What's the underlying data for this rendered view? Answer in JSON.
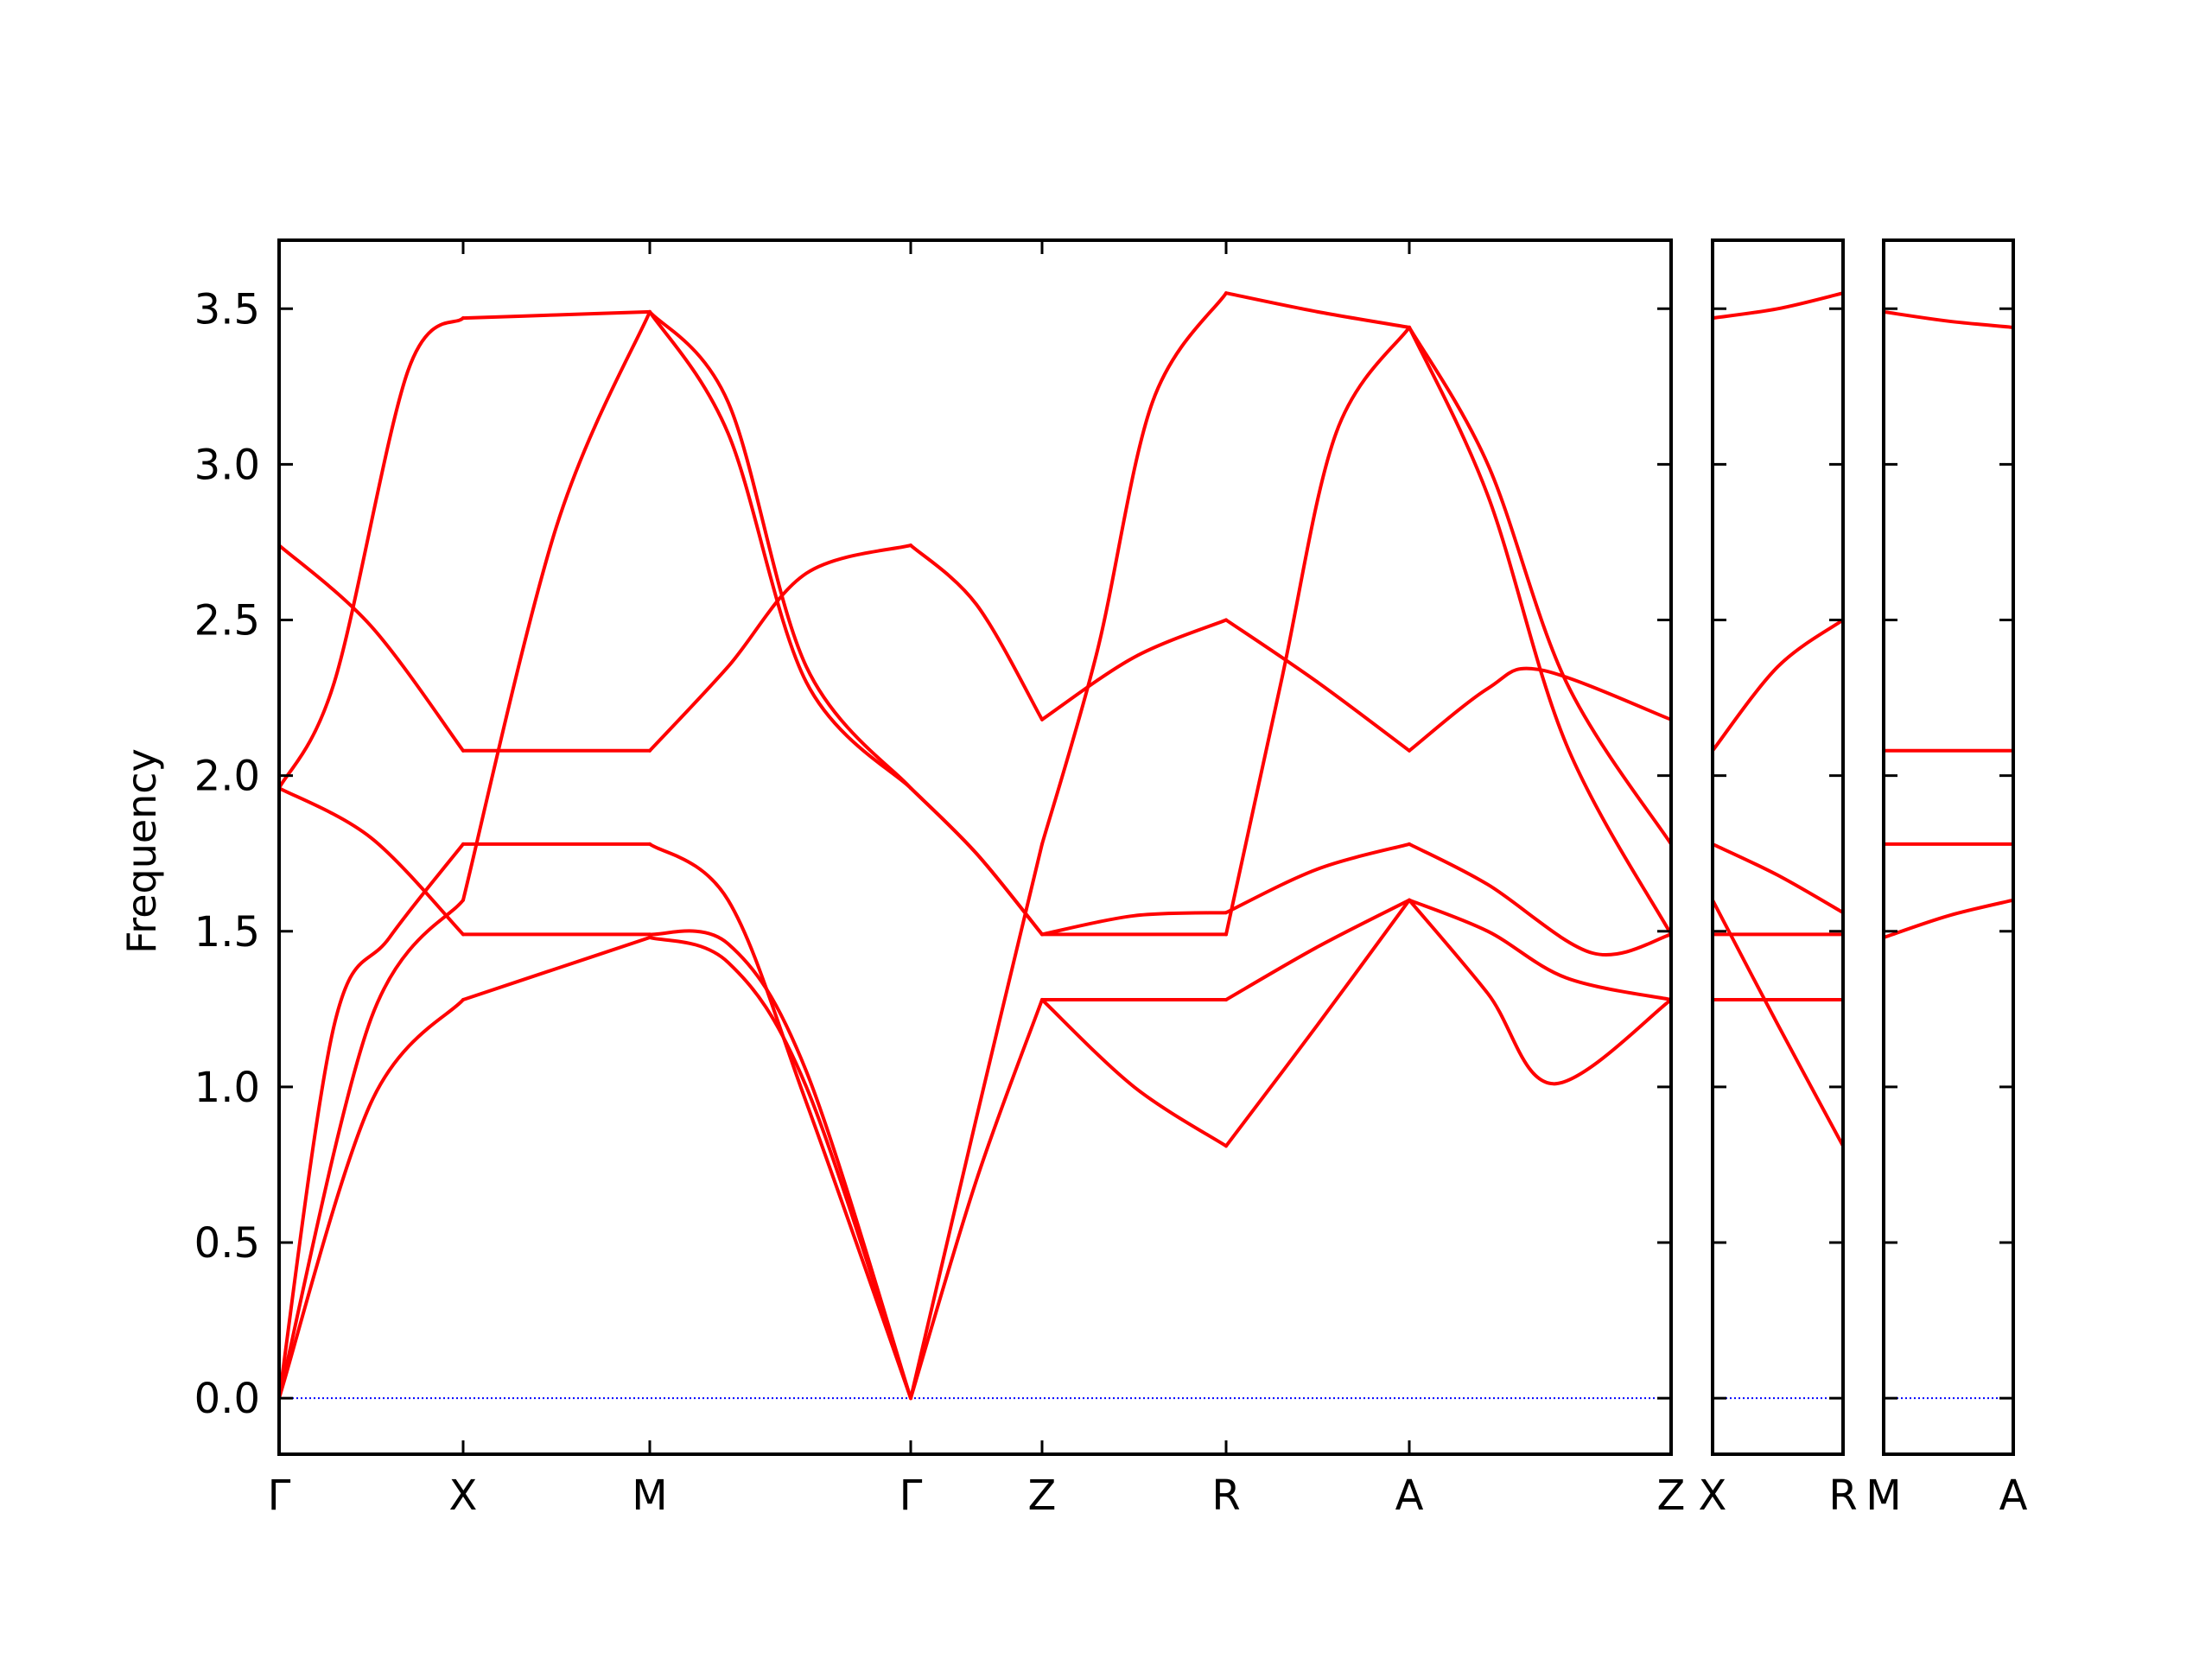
{
  "chart_data": {
    "type": "line",
    "title": "",
    "ylabel": "Frequency",
    "ylim": [
      -0.18,
      3.72
    ],
    "yticks": [
      "0.0",
      "0.5",
      "1.0",
      "1.5",
      "2.0",
      "2.5",
      "3.0",
      "3.5"
    ],
    "yticks_values": [
      0.0,
      0.5,
      1.0,
      1.5,
      2.0,
      2.5,
      3.0,
      3.5
    ],
    "grid": false,
    "band_color": "#ff0000",
    "zero_line_color": "#0000ff",
    "panels": [
      {
        "name": "panel-main",
        "segments": [
          {
            "from": "Γ",
            "to": "X",
            "bands": [
              [
                [
                  0,
                  0
                ],
                [
                  0.5,
                  0.95
                ],
                [
                  1,
                  1.28
                ]
              ],
              [
                [
                  0,
                  0
                ],
                [
                  0.5,
                  1.22
                ],
                [
                  1,
                  1.6
                ]
              ],
              [
                [
                  0,
                  0
                ],
                [
                  0.3,
                  1.2
                ],
                [
                  0.6,
                  1.48
                ],
                [
                  1,
                  1.78
                ]
              ],
              [
                [
                  0,
                  1.96
                ],
                [
                  0.5,
                  1.8
                ],
                [
                  1,
                  1.49
                ]
              ],
              [
                [
                  0,
                  1.96
                ],
                [
                  0.3,
                  2.3
                ],
                [
                  0.7,
                  3.3
                ],
                [
                  1,
                  3.47
                ]
              ],
              [
                [
                  0,
                  2.74
                ],
                [
                  0.5,
                  2.48
                ],
                [
                  1,
                  2.08
                ]
              ]
            ]
          },
          {
            "from": "X",
            "to": "M",
            "bands": [
              [
                [
                  0,
                  1.28
                ],
                [
                  0.5,
                  1.38
                ],
                [
                  1,
                  1.48
                ]
              ],
              [
                [
                  0,
                  1.49
                ],
                [
                  0.5,
                  1.49
                ],
                [
                  1,
                  1.49
                ]
              ],
              [
                [
                  0,
                  1.6
                ],
                [
                  0.5,
                  2.8
                ],
                [
                  1,
                  3.49
                ]
              ],
              [
                [
                  0,
                  1.78
                ],
                [
                  0.5,
                  1.78
                ],
                [
                  1,
                  1.78
                ]
              ],
              [
                [
                  0,
                  2.08
                ],
                [
                  0.5,
                  2.08
                ],
                [
                  1,
                  2.08
                ]
              ],
              [
                [
                  0,
                  3.47
                ],
                [
                  0.5,
                  3.48
                ],
                [
                  1,
                  3.49
                ]
              ]
            ]
          },
          {
            "from": "M",
            "to": "Γ",
            "bands": [
              [
                [
                  0,
                  1.48
                ],
                [
                  0.3,
                  1.4
                ],
                [
                  0.6,
                  1.0
                ],
                [
                  1,
                  0
                ]
              ],
              [
                [
                  0,
                  1.49
                ],
                [
                  0.3,
                  1.46
                ],
                [
                  0.6,
                  1.05
                ],
                [
                  1,
                  0
                ]
              ],
              [
                [
                  0,
                  1.78
                ],
                [
                  0.3,
                  1.6
                ],
                [
                  0.6,
                  0.95
                ],
                [
                  1,
                  0
                ]
              ],
              [
                [
                  0,
                  2.08
                ],
                [
                  0.3,
                  2.35
                ],
                [
                  0.6,
                  2.65
                ],
                [
                  1,
                  2.74
                ]
              ],
              [
                [
                  0,
                  3.49
                ],
                [
                  0.3,
                  3.1
                ],
                [
                  0.6,
                  2.3
                ],
                [
                  1,
                  1.96
                ]
              ],
              [
                [
                  0,
                  3.49
                ],
                [
                  0.3,
                  3.2
                ],
                [
                  0.6,
                  2.35
                ],
                [
                  1,
                  1.96
                ]
              ]
            ]
          },
          {
            "from": "Γ",
            "to": "Z",
            "bands": [
              [
                [
                  0,
                  0
                ],
                [
                  0.5,
                  0.7
                ],
                [
                  1,
                  1.28
                ]
              ],
              [
                [
                  0,
                  0
                ],
                [
                  0.5,
                  0.9
                ],
                [
                  1,
                  1.78
                ]
              ],
              [
                [
                  0,
                  1.96
                ],
                [
                  0.5,
                  1.75
                ],
                [
                  1,
                  1.49
                ]
              ],
              [
                [
                  0,
                  1.96
                ],
                [
                  0.5,
                  1.75
                ],
                [
                  1,
                  1.49
                ]
              ],
              [
                [
                  0,
                  2.74
                ],
                [
                  0.5,
                  2.55
                ],
                [
                  1,
                  2.18
                ]
              ]
            ]
          },
          {
            "from": "Z",
            "to": "R",
            "bands": [
              [
                [
                  0,
                  1.28
                ],
                [
                  0.5,
                  1.28
                ],
                [
                  1,
                  1.28
                ]
              ],
              [
                [
                  0,
                  1.28
                ],
                [
                  0.5,
                  1.0
                ],
                [
                  1,
                  0.81
                ]
              ],
              [
                [
                  0,
                  1.49
                ],
                [
                  0.5,
                  1.49
                ],
                [
                  1,
                  1.49
                ]
              ],
              [
                [
                  0,
                  1.49
                ],
                [
                  0.5,
                  1.55
                ],
                [
                  1,
                  1.56
                ]
              ],
              [
                [
                  0,
                  1.78
                ],
                [
                  0.3,
                  2.4
                ],
                [
                  0.6,
                  3.2
                ],
                [
                  1,
                  3.55
                ]
              ],
              [
                [
                  0,
                  2.18
                ],
                [
                  0.5,
                  2.38
                ],
                [
                  1,
                  2.5
                ]
              ]
            ]
          },
          {
            "from": "R",
            "to": "A",
            "bands": [
              [
                [
                  0,
                  0.81
                ],
                [
                  0.5,
                  1.2
                ],
                [
                  1,
                  1.6
                ]
              ],
              [
                [
                  0,
                  1.28
                ],
                [
                  0.5,
                  1.45
                ],
                [
                  1,
                  1.6
                ]
              ],
              [
                [
                  0,
                  1.49
                ],
                [
                  0.3,
                  2.3
                ],
                [
                  0.6,
                  3.1
                ],
                [
                  1,
                  3.44
                ]
              ],
              [
                [
                  0,
                  1.56
                ],
                [
                  0.5,
                  1.7
                ],
                [
                  1,
                  1.78
                ]
              ],
              [
                [
                  0,
                  2.5
                ],
                [
                  0.5,
                  2.3
                ],
                [
                  1,
                  2.08
                ]
              ],
              [
                [
                  0,
                  3.55
                ],
                [
                  0.5,
                  3.49
                ],
                [
                  1,
                  3.44
                ]
              ]
            ]
          },
          {
            "from": "A",
            "to": "Z",
            "bands": [
              [
                [
                  0,
                  1.6
                ],
                [
                  0.3,
                  1.3
                ],
                [
                  0.55,
                  1.01
                ],
                [
                  1,
                  1.28
                ]
              ],
              [
                [
                  0,
                  1.6
                ],
                [
                  0.3,
                  1.5
                ],
                [
                  0.6,
                  1.35
                ],
                [
                  1,
                  1.28
                ]
              ],
              [
                [
                  0,
                  1.78
                ],
                [
                  0.3,
                  1.65
                ],
                [
                  0.7,
                  1.43
                ],
                [
                  1,
                  1.49
                ]
              ],
              [
                [
                  0,
                  2.08
                ],
                [
                  0.3,
                  2.28
                ],
                [
                  0.5,
                  2.34
                ],
                [
                  1,
                  2.18
                ]
              ],
              [
                [
                  0,
                  3.44
                ],
                [
                  0.3,
                  3.0
                ],
                [
                  0.6,
                  2.3
                ],
                [
                  1,
                  1.78
                ]
              ],
              [
                [
                  0,
                  3.44
                ],
                [
                  0.3,
                  2.9
                ],
                [
                  0.6,
                  2.1
                ],
                [
                  1,
                  1.49
                ]
              ]
            ]
          }
        ],
        "labels": [
          "Γ",
          "X",
          "M",
          "Γ",
          "Z",
          "R",
          "A",
          "Z"
        ]
      },
      {
        "name": "panel-xr",
        "segments": [
          {
            "from": "X",
            "to": "R",
            "bands": [
              [
                [
                  0,
                  1.28
                ],
                [
                  0.5,
                  1.28
                ],
                [
                  1,
                  1.28
                ]
              ],
              [
                [
                  0,
                  1.49
                ],
                [
                  0.5,
                  1.49
                ],
                [
                  1,
                  1.49
                ]
              ],
              [
                [
                  0,
                  1.6
                ],
                [
                  0.5,
                  1.2
                ],
                [
                  1,
                  0.81
                ]
              ],
              [
                [
                  0,
                  1.78
                ],
                [
                  0.5,
                  1.68
                ],
                [
                  1,
                  1.56
                ]
              ],
              [
                [
                  0,
                  2.08
                ],
                [
                  0.5,
                  2.35
                ],
                [
                  1,
                  2.5
                ]
              ],
              [
                [
                  0,
                  3.47
                ],
                [
                  0.5,
                  3.5
                ],
                [
                  1,
                  3.55
                ]
              ]
            ]
          }
        ],
        "labels": [
          "X",
          "R"
        ]
      },
      {
        "name": "panel-ma",
        "segments": [
          {
            "from": "M",
            "to": "A",
            "bands": [
              [
                [
                  0,
                  1.48
                ],
                [
                  0.5,
                  1.55
                ],
                [
                  1,
                  1.6
                ]
              ],
              [
                [
                  0,
                  1.78
                ],
                [
                  0.5,
                  1.78
                ],
                [
                  1,
                  1.78
                ]
              ],
              [
                [
                  0,
                  2.08
                ],
                [
                  0.5,
                  2.08
                ],
                [
                  1,
                  2.08
                ]
              ],
              [
                [
                  0,
                  3.49
                ],
                [
                  0.5,
                  3.46
                ],
                [
                  1,
                  3.44
                ]
              ]
            ]
          }
        ],
        "labels": [
          "M",
          "A"
        ]
      }
    ]
  }
}
